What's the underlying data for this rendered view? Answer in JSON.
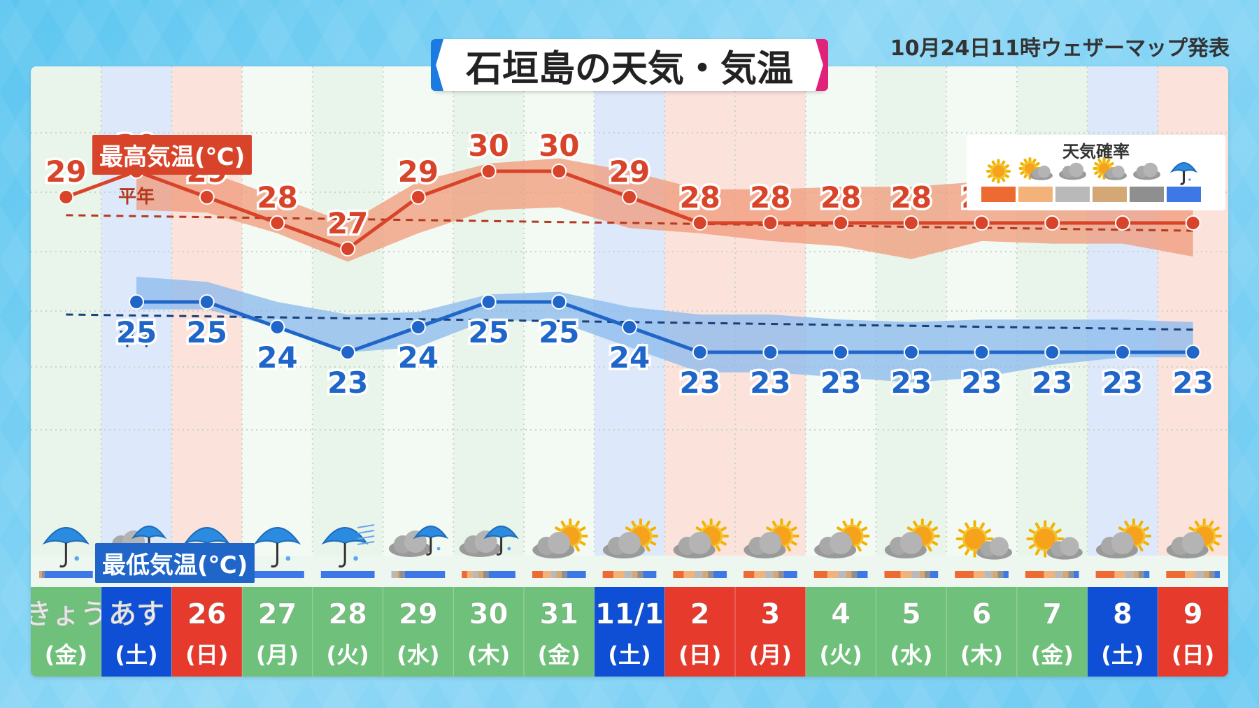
{
  "header": {
    "title": "石垣島の天気・気温",
    "announcement": "10月24日11時ウェザーマップ発表"
  },
  "labels": {
    "high": "最高気温(℃)",
    "low": "最低気温(℃)",
    "normal": "平年"
  },
  "legend": {
    "title": "天気確率",
    "items": [
      {
        "icon": "sun-icon",
        "color": "#ee6a33"
      },
      {
        "icon": "sun-cloud-icon",
        "color": "#f3b27a"
      },
      {
        "icon": "cloud-icon",
        "color": "#b9b9b9"
      },
      {
        "icon": "sun-cloud-icon",
        "color": "#d4a777"
      },
      {
        "icon": "cloud-icon",
        "color": "#8f8f8f"
      },
      {
        "icon": "umbrella-icon",
        "color": "#3d78e6"
      }
    ]
  },
  "colors": {
    "high": "#d8442a",
    "high_band": "#f0997a",
    "low": "#1f66c8",
    "low_band": "#8ab8ee",
    "normal_high": "#b33a20",
    "normal_low": "#1a3f7a",
    "col_weekday": "#6fc07a",
    "col_sat": "#0e4fd6",
    "col_sun": "#e53a2c"
  },
  "chart_data": {
    "type": "line",
    "days": [
      {
        "day": "きょう",
        "dow": "(金)",
        "kind": "weekday",
        "weather": "umbrella"
      },
      {
        "day": "あす",
        "dow": "(土)",
        "kind": "sat",
        "weather": "cloud-umbrella"
      },
      {
        "day": "26",
        "dow": "(日)",
        "kind": "sun",
        "weather": "umbrella"
      },
      {
        "day": "27",
        "dow": "(月)",
        "kind": "weekday",
        "weather": "umbrella"
      },
      {
        "day": "28",
        "dow": "(火)",
        "kind": "weekday",
        "weather": "umbrella-wind"
      },
      {
        "day": "29",
        "dow": "(水)",
        "kind": "weekday",
        "weather": "cloud-umbrella"
      },
      {
        "day": "30",
        "dow": "(木)",
        "kind": "weekday",
        "weather": "cloud-umbrella"
      },
      {
        "day": "31",
        "dow": "(金)",
        "kind": "weekday",
        "weather": "cloud-sun"
      },
      {
        "day": "11/1",
        "dow": "(土)",
        "kind": "sat",
        "weather": "cloud-sun"
      },
      {
        "day": "2",
        "dow": "(日)",
        "kind": "sun",
        "weather": "cloud-sun"
      },
      {
        "day": "3",
        "dow": "(月)",
        "kind": "sun",
        "weather": "cloud-sun"
      },
      {
        "day": "4",
        "dow": "(火)",
        "kind": "weekday",
        "weather": "cloud-sun"
      },
      {
        "day": "5",
        "dow": "(水)",
        "kind": "weekday",
        "weather": "cloud-sun"
      },
      {
        "day": "6",
        "dow": "(木)",
        "kind": "weekday",
        "weather": "sun-cloud"
      },
      {
        "day": "7",
        "dow": "(金)",
        "kind": "weekday",
        "weather": "sun-cloud"
      },
      {
        "day": "8",
        "dow": "(土)",
        "kind": "sat",
        "weather": "cloud-sun"
      },
      {
        "day": "9",
        "dow": "(日)",
        "kind": "sun",
        "weather": "cloud-sun"
      }
    ],
    "series": [
      {
        "name": "最高気温(℃)",
        "values": [
          29,
          30,
          29,
          28,
          27,
          29,
          30,
          30,
          29,
          28,
          28,
          28,
          28,
          28,
          28,
          28,
          28
        ]
      },
      {
        "name": "最低気温(℃)",
        "values": [
          null,
          25,
          25,
          24,
          23,
          24,
          25,
          25,
          24,
          23,
          23,
          23,
          23,
          23,
          23,
          23,
          23
        ]
      }
    ],
    "high_range": {
      "upper": [
        null,
        30.5,
        30.0,
        29.0,
        28.0,
        29.6,
        30.3,
        30.5,
        30.0,
        29.3,
        29.3,
        29.4,
        29.4,
        29.6,
        29.8,
        29.7,
        29.7
      ],
      "lower": [
        null,
        28.5,
        28.4,
        27.6,
        26.5,
        27.6,
        28.5,
        28.6,
        27.8,
        27.6,
        27.3,
        27.1,
        26.6,
        27.3,
        27.2,
        27.2,
        26.7
      ]
    },
    "low_range": {
      "upper": [
        null,
        26.0,
        25.8,
        25.0,
        24.5,
        24.6,
        25.3,
        25.4,
        24.8,
        24.5,
        24.5,
        24.3,
        24.2,
        24.3,
        24.3,
        24.3,
        24.2
      ],
      "lower": [
        null,
        24.7,
        24.7,
        24.0,
        23.0,
        23.2,
        24.3,
        24.2,
        23.2,
        22.2,
        22.2,
        22.0,
        21.8,
        22.0,
        22.5,
        22.8,
        22.8
      ]
    },
    "normal_high": {
      "start": 28.3,
      "end": 27.7
    },
    "normal_low": {
      "start": 24.5,
      "end": 23.9
    },
    "probabilities": [
      [
        0,
        0,
        0,
        5,
        5,
        90
      ],
      [
        0,
        0,
        10,
        5,
        10,
        75
      ],
      [
        0,
        0,
        0,
        0,
        0,
        100
      ],
      [
        0,
        0,
        0,
        0,
        0,
        100
      ],
      [
        0,
        0,
        0,
        0,
        0,
        100
      ],
      [
        0,
        0,
        10,
        5,
        10,
        75
      ],
      [
        10,
        10,
        10,
        10,
        10,
        50
      ],
      [
        20,
        15,
        10,
        10,
        10,
        35
      ],
      [
        20,
        20,
        15,
        10,
        10,
        25
      ],
      [
        20,
        20,
        15,
        10,
        10,
        25
      ],
      [
        20,
        20,
        15,
        10,
        10,
        25
      ],
      [
        25,
        20,
        15,
        10,
        10,
        20
      ],
      [
        30,
        20,
        15,
        10,
        10,
        15
      ],
      [
        35,
        20,
        15,
        10,
        10,
        10
      ],
      [
        35,
        20,
        15,
        10,
        10,
        10
      ],
      [
        35,
        20,
        15,
        10,
        10,
        10
      ],
      [
        35,
        20,
        15,
        10,
        10,
        10
      ]
    ],
    "ylim": [
      20,
      31
    ]
  }
}
